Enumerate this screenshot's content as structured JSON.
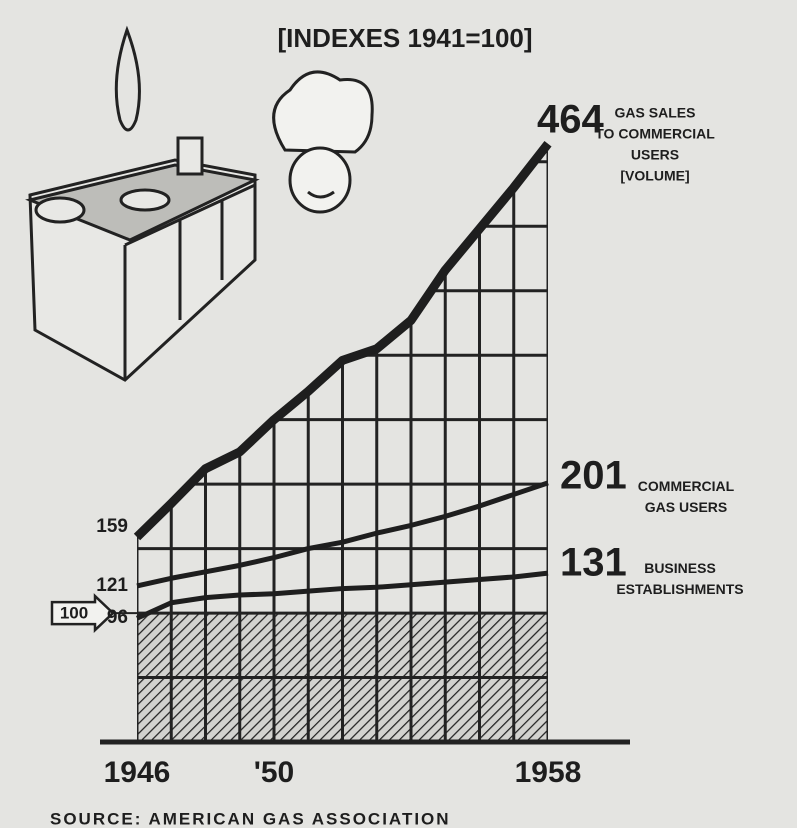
{
  "chart_data": {
    "type": "line",
    "title": "[INDEXES 1941=100]",
    "x": [
      1946,
      1947,
      1948,
      1949,
      1950,
      1951,
      1952,
      1953,
      1954,
      1955,
      1956,
      1957,
      1958
    ],
    "xlim": [
      1946,
      1958
    ],
    "xticks": [
      1946,
      {
        "value": 1950,
        "label": "'50"
      },
      1958
    ],
    "ylim": [
      0,
      470
    ],
    "gridlines": [
      50,
      100,
      150,
      200,
      250,
      300,
      350,
      400,
      450
    ],
    "reference_line": 100,
    "color": "#1e1e1e",
    "series": [
      {
        "name": "GAS SALES TO COMMERCIAL USERS",
        "note": "[VOLUME]",
        "values": [
          159,
          185,
          212,
          225,
          250,
          272,
          296,
          305,
          327,
          366,
          398,
          430,
          464
        ]
      },
      {
        "name": "COMMERCIAL GAS USERS",
        "values": [
          121,
          127,
          132,
          137,
          143,
          150,
          155,
          162,
          168,
          175,
          183,
          192,
          201
        ]
      },
      {
        "name": "BUSINESS ESTABLISHMENTS",
        "values": [
          96,
          108,
          112,
          114,
          115,
          117,
          119,
          120,
          122,
          124,
          126,
          128,
          131
        ]
      }
    ],
    "source": "SOURCE: AMERICAN GAS ASSOCIATION"
  }
}
